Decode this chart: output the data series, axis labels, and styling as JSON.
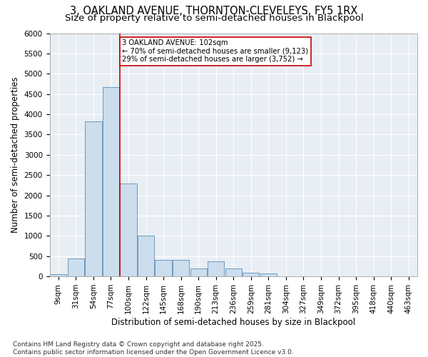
{
  "title": "3, OAKLAND AVENUE, THORNTON-CLEVELEYS, FY5 1RX",
  "subtitle": "Size of property relative to semi-detached houses in Blackpool",
  "xlabel": "Distribution of semi-detached houses by size in Blackpool",
  "ylabel": "Number of semi-detached properties",
  "bar_labels": [
    "9sqm",
    "31sqm",
    "54sqm",
    "77sqm",
    "100sqm",
    "122sqm",
    "145sqm",
    "168sqm",
    "190sqm",
    "213sqm",
    "236sqm",
    "259sqm",
    "281sqm",
    "304sqm",
    "327sqm",
    "349sqm",
    "372sqm",
    "395sqm",
    "418sqm",
    "440sqm",
    "463sqm"
  ],
  "bar_values": [
    50,
    440,
    3820,
    4670,
    2300,
    1000,
    410,
    410,
    200,
    370,
    200,
    90,
    75,
    0,
    0,
    0,
    0,
    0,
    0,
    0,
    0
  ],
  "bar_color": "#ccdded",
  "bar_edge_color": "#5b8db8",
  "vline_x": 3.5,
  "annotation_text_line1": "3 OAKLAND AVENUE: 102sqm",
  "annotation_text_line2": "← 70% of semi-detached houses are smaller (9,123)",
  "annotation_text_line3": "29% of semi-detached houses are larger (3,752) →",
  "annotation_box_facecolor": "#ffffff",
  "annotation_box_edgecolor": "#cc0000",
  "vline_color": "#cc0000",
  "ylim": [
    0,
    6000
  ],
  "yticks": [
    0,
    500,
    1000,
    1500,
    2000,
    2500,
    3000,
    3500,
    4000,
    4500,
    5000,
    5500,
    6000
  ],
  "footnote": "Contains HM Land Registry data © Crown copyright and database right 2025.\nContains public sector information licensed under the Open Government Licence v3.0.",
  "plot_bg_color": "#e8eef4",
  "title_fontsize": 10.5,
  "subtitle_fontsize": 9.5,
  "axis_label_fontsize": 8.5,
  "tick_fontsize": 7.5,
  "footnote_fontsize": 6.5
}
